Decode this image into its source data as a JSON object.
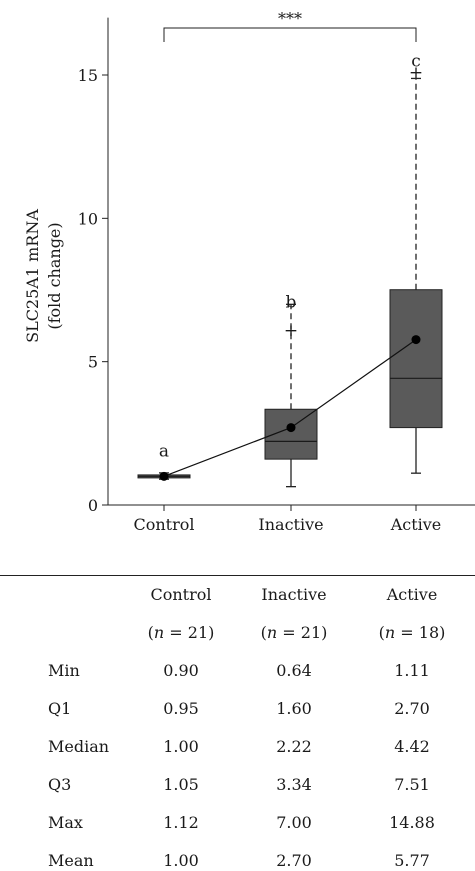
{
  "chart_data": {
    "type": "box",
    "ylabel_line1": "SLC25A1 mRNA",
    "ylabel_line2": "(fold change)",
    "ylim": [
      0,
      17
    ],
    "yticks": [
      0,
      5,
      10,
      15
    ],
    "categories": [
      "Control",
      "Inactive",
      "Active"
    ],
    "boxes": [
      {
        "min": 0.9,
        "q1": 0.95,
        "median": 1.0,
        "q3": 1.05,
        "max": 1.12,
        "mean": 1.0,
        "outliers": [],
        "letter": "a",
        "letter_y": 1.9
      },
      {
        "min": 0.64,
        "q1": 1.6,
        "median": 2.22,
        "q3": 3.34,
        "max": 7.0,
        "mean": 2.7,
        "outliers": [
          6.1
        ],
        "letter": "b",
        "letter_y": 7.1
      },
      {
        "min": 1.11,
        "q1": 2.7,
        "median": 4.42,
        "q3": 7.51,
        "max": 14.88,
        "mean": 5.77,
        "outliers": [
          15.1
        ],
        "letter": "c",
        "letter_y": 15.5
      }
    ],
    "significance": {
      "from": "Control",
      "to": "Active",
      "label": "***"
    },
    "box_color": "#5a5a5a",
    "whisker_style": "dashed",
    "mean_marker": "filled-circle-line"
  },
  "table": {
    "columns": [
      {
        "name": "Control",
        "n_label": "n",
        "n_value": "= 21)"
      },
      {
        "name": "Inactive",
        "n_label": "n",
        "n_value": "= 21)"
      },
      {
        "name": "Active",
        "n_label": "n",
        "n_value": "= 18)"
      }
    ],
    "rows": [
      {
        "label": "Min",
        "values": [
          "0.90",
          "0.64",
          "1.11"
        ]
      },
      {
        "label": "Q1",
        "values": [
          "0.95",
          "1.60",
          "2.70"
        ]
      },
      {
        "label": "Median",
        "values": [
          "1.00",
          "2.22",
          "4.42"
        ]
      },
      {
        "label": "Q3",
        "values": [
          "1.05",
          "3.34",
          "7.51"
        ]
      },
      {
        "label": "Max",
        "values": [
          "1.12",
          "7.00",
          "14.88"
        ]
      },
      {
        "label": "Mean",
        "values": [
          "1.00",
          "2.70",
          "5.77"
        ]
      }
    ]
  }
}
